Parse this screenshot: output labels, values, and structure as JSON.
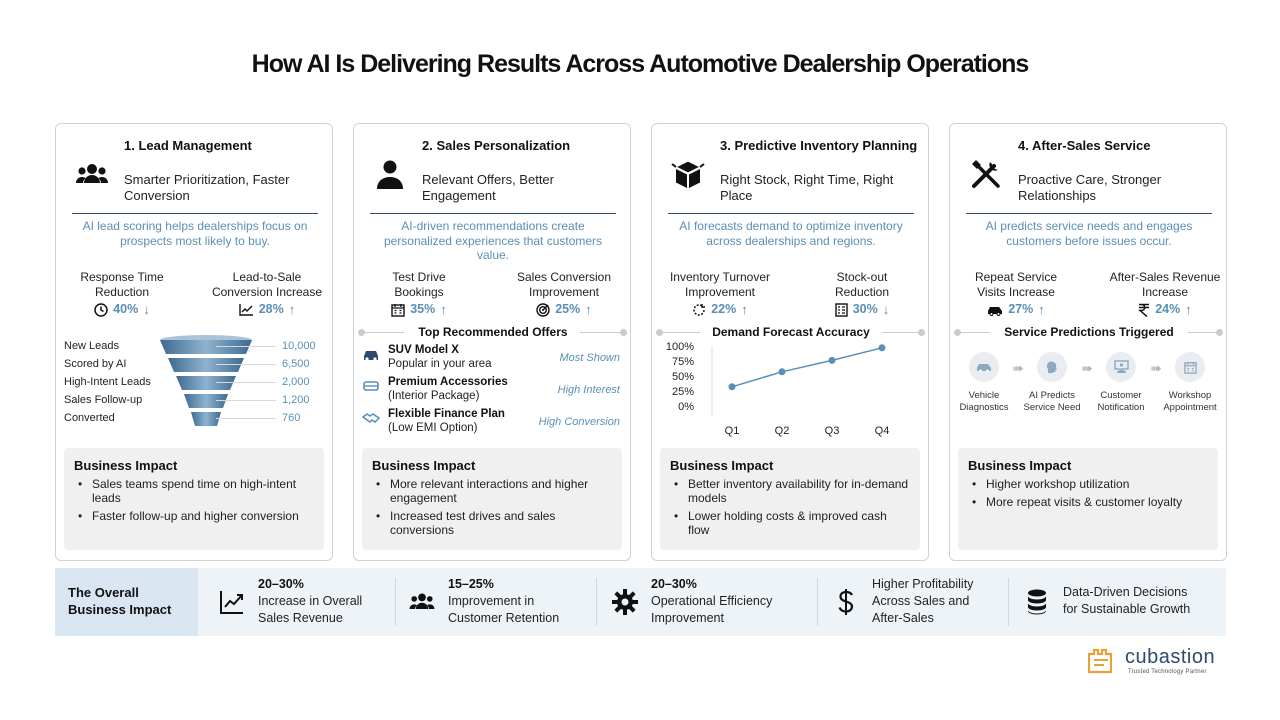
{
  "title": "How AI Is Delivering Results Across Automotive Dealership Operations",
  "cards": [
    {
      "title": "1. Lead Management",
      "subtitle": "Smarter Prioritization, Faster Conversion",
      "description": "AI lead scoring helps dealerships focus on prospects most likely to buy.",
      "icon": "people-group-icon",
      "metrics": [
        {
          "label": "Response Time Reduction",
          "value": "40%",
          "direction": "↓",
          "icon": "clock-icon"
        },
        {
          "label": "Lead-to-Sale Conversion Increase",
          "value": "28%",
          "direction": "↑",
          "icon": "trend-chart-icon"
        }
      ],
      "funnel": [
        {
          "label": "New Leads",
          "value": "10,000"
        },
        {
          "label": "Scored by AI",
          "value": "6,500"
        },
        {
          "label": "High-Intent Leads",
          "value": "2,000"
        },
        {
          "label": "Sales Follow-up",
          "value": "1,200"
        },
        {
          "label": "Converted",
          "value": "760"
        }
      ],
      "impact_title": "Business Impact",
      "impact": [
        "Sales teams spend time on high-intent leads",
        "Faster follow-up and higher conversion"
      ]
    },
    {
      "title": "2. Sales Personalization",
      "subtitle": "Relevant Offers, Better Engagement",
      "description": "AI-driven recommendations create personalized experiences that customers value.",
      "icon": "person-icon",
      "metrics": [
        {
          "label": "Test Drive Bookings",
          "value": "35%",
          "direction": "↑",
          "icon": "calendar-icon"
        },
        {
          "label": "Sales Conversion Improvement",
          "value": "25%",
          "direction": "↑",
          "icon": "target-icon"
        }
      ],
      "section_title": "Top Recommended Offers",
      "offers": [
        {
          "title": "SUV Model X",
          "subtitle": "Popular in your area",
          "tag": "Most Shown",
          "icon": "car-icon"
        },
        {
          "title": "Premium Accessories",
          "subtitle": "(Interior Package)",
          "tag": "High Interest",
          "icon": "seat-icon"
        },
        {
          "title": "Flexible Finance Plan",
          "subtitle": "(Low EMI Option)",
          "tag": "High Conversion",
          "icon": "handshake-icon"
        }
      ],
      "impact_title": "Business Impact",
      "impact": [
        "More relevant interactions and higher engagement",
        "Increased test drives and sales conversions"
      ]
    },
    {
      "title": "3. Predictive Inventory Planning",
      "subtitle": "Right Stock, Right Time, Right Place",
      "description": "AI forecasts demand to optimize inventory across dealerships and regions.",
      "icon": "boxes-icon",
      "metrics": [
        {
          "label": "Inventory Turnover Improvement",
          "value": "22%",
          "direction": "↑",
          "icon": "cycle-icon"
        },
        {
          "label": "Stock-out Reduction",
          "value": "30%",
          "direction": "↓",
          "icon": "clipboard-icon"
        }
      ],
      "impact_title": "Business Impact",
      "impact": [
        "Better inventory availability for in-demand models",
        "Lower holding costs & improved cash flow"
      ]
    },
    {
      "title": "4. After-Sales Service",
      "subtitle": "Proactive Care, Stronger Relationships",
      "description": "AI predicts service needs and engages customers before issues occur.",
      "icon": "tools-icon",
      "metrics": [
        {
          "label": "Repeat Service Visits Increase",
          "value": "27%",
          "direction": "↑",
          "icon": "car-icon"
        },
        {
          "label": "After-Sales Revenue Increase",
          "value": "24%",
          "direction": "↑",
          "icon": "rupee-icon"
        }
      ],
      "section_title": "Service Predictions Triggered",
      "flow": [
        {
          "label": "Vehicle Diagnostics",
          "icon": "car-icon"
        },
        {
          "label": "AI Predicts Service Need",
          "icon": "ai-head-icon"
        },
        {
          "label": "Customer Notification",
          "icon": "notification-icon"
        },
        {
          "label": "Workshop Appointment",
          "icon": "calendar-icon"
        }
      ],
      "impact_title": "Business Impact",
      "impact": [
        "Higher workshop utilization",
        "More repeat visits & customer loyalty"
      ]
    }
  ],
  "chart_data": {
    "type": "line",
    "title": "Demand Forecast Accuracy",
    "categories": [
      "Q1",
      "Q2",
      "Q3",
      "Q4"
    ],
    "values": [
      32,
      57,
      76,
      97
    ],
    "yticks": [
      "100%",
      "75%",
      "50%",
      "25%",
      "0%"
    ],
    "ylim": [
      0,
      100
    ],
    "grid": false,
    "color": "#5a8fb5"
  },
  "bottom": {
    "heading": "The Overall Business Impact",
    "stats": [
      {
        "strong": "20–30%",
        "text": [
          "Increase in Overall",
          "Sales Revenue"
        ],
        "icon": "trend-chart-icon"
      },
      {
        "strong": "15–25%",
        "text": [
          "Improvement in",
          "Customer Retention"
        ],
        "icon": "people-group-icon"
      },
      {
        "strong": "20–30%",
        "text": [
          "Operational Efficiency",
          "Improvement"
        ],
        "icon": "gear-icon"
      },
      {
        "strong": "",
        "text": [
          "Higher Profitability",
          "Across Sales and",
          "After-Sales"
        ],
        "icon": "dollar-icon"
      },
      {
        "strong": "",
        "text": [
          "Data-Driven Decisions",
          "for Sustainable Growth"
        ],
        "icon": "database-icon"
      }
    ]
  },
  "logo": {
    "name": "cubastion",
    "tagline": "Trusted Technology Partner"
  },
  "colors": {
    "accent": "#5a8fb5",
    "dark": "#2f4b6b",
    "logo": "#e8a23a"
  }
}
